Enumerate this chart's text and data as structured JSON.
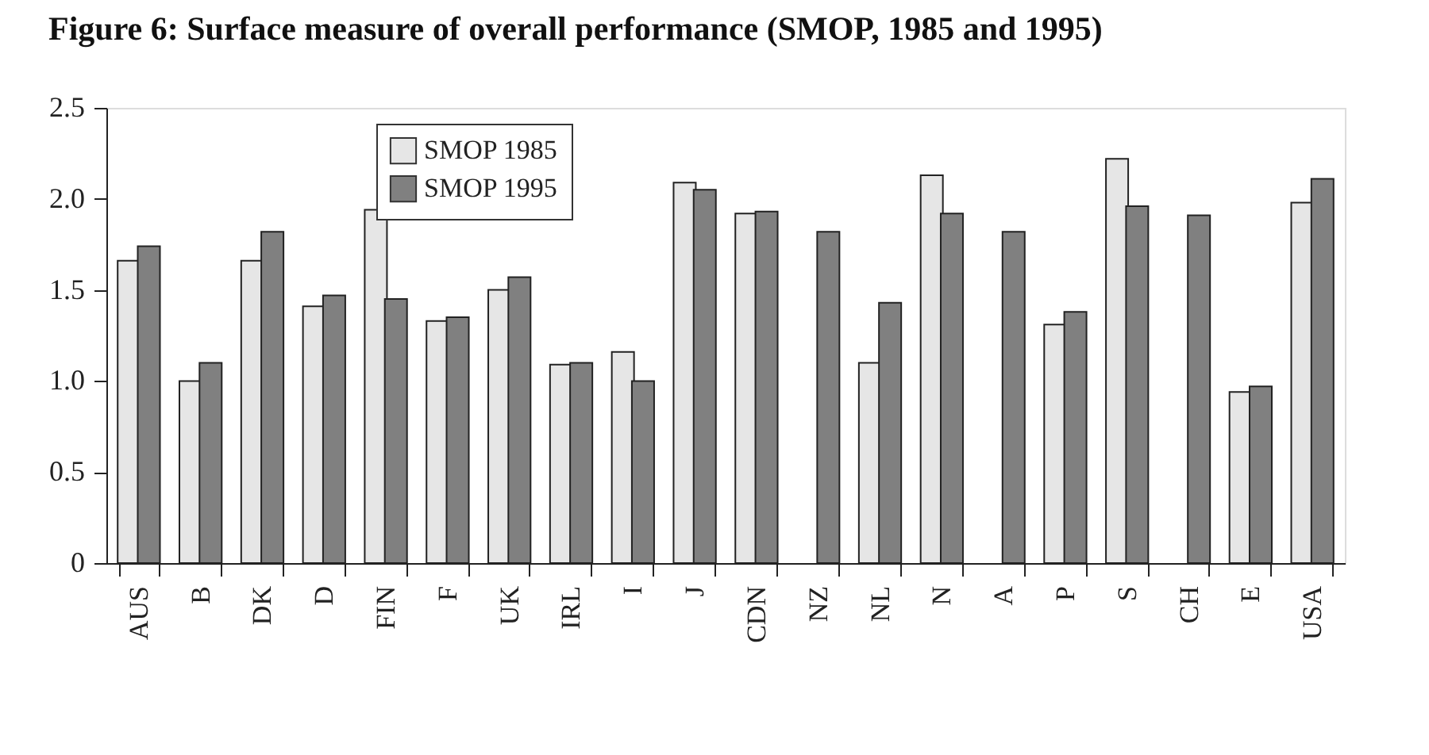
{
  "chart_data": {
    "type": "bar",
    "title": "Figure 6: Surface measure of overall performance (SMOP, 1985 and 1995)",
    "categories": [
      "AUS",
      "B",
      "DK",
      "D",
      "FIN",
      "F",
      "UK",
      "IRL",
      "I",
      "J",
      "CDN",
      "NZ",
      "NL",
      "N",
      "A",
      "P",
      "S",
      "CH",
      "E",
      "USA"
    ],
    "series": [
      {
        "name": "SMOP 1985",
        "color": "#e6e6e6",
        "values": [
          1.66,
          1.0,
          1.66,
          1.41,
          1.94,
          1.33,
          1.5,
          1.09,
          1.16,
          2.09,
          1.92,
          null,
          1.1,
          2.13,
          null,
          1.31,
          2.22,
          null,
          0.94,
          1.98
        ]
      },
      {
        "name": "SMOP 1995",
        "color": "#808080",
        "values": [
          1.74,
          1.1,
          1.82,
          1.47,
          1.45,
          1.35,
          1.57,
          1.1,
          1.0,
          2.05,
          1.93,
          1.82,
          1.43,
          1.92,
          1.82,
          1.38,
          1.96,
          1.91,
          0.97,
          2.11
        ]
      }
    ],
    "ylim": [
      0,
      2.5
    ],
    "yticks": [
      0,
      0.5,
      {
        "value": 1,
        "label": "1.0"
      },
      1.5,
      {
        "value": 2,
        "label": "2.0"
      },
      2.5
    ],
    "grid": false,
    "legend": "top left"
  }
}
